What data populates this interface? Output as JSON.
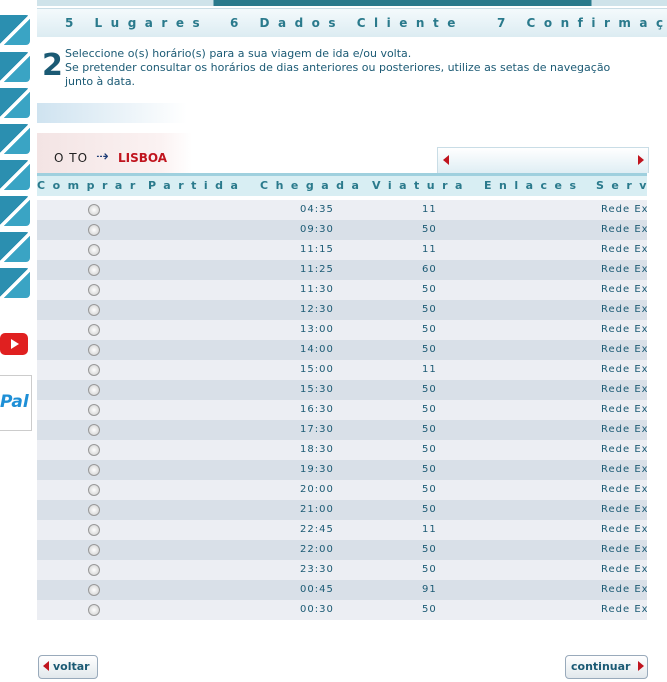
{
  "tabs": [
    "5 Lugares",
    "6 Dados Cliente",
    "7 Confirmaç"
  ],
  "step": {
    "number": "2",
    "lines": [
      "Seleccione o(s) horário(s) para a sua viagem de ida e/ou volta.",
      "Se pretender consultar os horários de dias anteriores ou posteriores, utilize as setas de navegação",
      "junto à data."
    ]
  },
  "route": {
    "origin": "O TO",
    "destination": "LISBOA"
  },
  "table": {
    "headers": [
      "Comprar",
      "Partida",
      "Chegada",
      "Viatura",
      "Enlaces",
      "Servi"
    ],
    "rows": [
      [
        "04:35",
        "11",
        "Rede Ex"
      ],
      [
        "09:30",
        "50",
        "Rede Ex"
      ],
      [
        "11:15",
        "11",
        "Rede Ex"
      ],
      [
        "11:25",
        "60",
        "Rede Ex"
      ],
      [
        "11:30",
        "50",
        "Rede Ex"
      ],
      [
        "12:30",
        "50",
        "Rede Ex"
      ],
      [
        "13:00",
        "50",
        "Rede Ex"
      ],
      [
        "14:00",
        "50",
        "Rede Ex"
      ],
      [
        "15:00",
        "11",
        "Rede Ex"
      ],
      [
        "15:30",
        "50",
        "Rede Ex"
      ],
      [
        "16:30",
        "50",
        "Rede Ex"
      ],
      [
        "17:30",
        "50",
        "Rede Ex"
      ],
      [
        "18:30",
        "50",
        "Rede Ex"
      ],
      [
        "19:30",
        "50",
        "Rede Ex"
      ],
      [
        "20:00",
        "50",
        "Rede Ex"
      ],
      [
        "21:00",
        "50",
        "Rede Ex"
      ],
      [
        "22:45",
        "11",
        "Rede Ex"
      ],
      [
        "22:00",
        "50",
        "Rede Ex"
      ],
      [
        "23:30",
        "50",
        "Rede Ex"
      ],
      [
        "00:45",
        "91",
        "Rede Ex"
      ],
      [
        "00:30",
        "50",
        "Rede Ex"
      ]
    ]
  },
  "buttons": {
    "back": "voltar",
    "next": "continuar"
  },
  "sidebar": {
    "paypal": "Pal"
  }
}
